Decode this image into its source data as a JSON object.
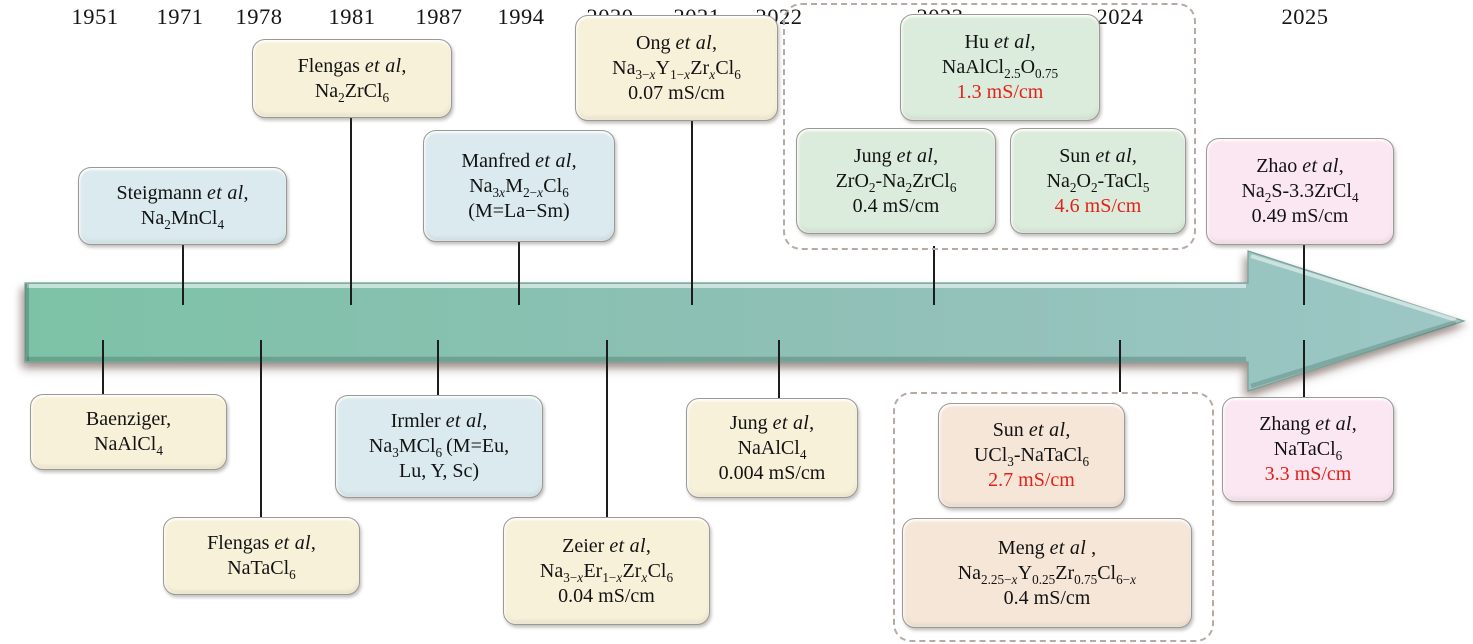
{
  "figure": {
    "description": "Timeline of sodium chloride-based solid electrolytes",
    "palette": {
      "arrow_left": "#7dc2a7",
      "arrow_right": "#9cc7c5",
      "box_cream": "#f8f1d9",
      "box_blue": "#daeaef",
      "box_green": "#dcecdc",
      "box_pink": "#fbe7f1",
      "box_tan": "#f6e6d8",
      "highlight_red": "#e32118",
      "dashed_frame": "#b6aaa4"
    }
  },
  "timeline": {
    "years": [
      "1951",
      "1971",
      "1978",
      "1981",
      "1987",
      "1994",
      "2020",
      "2021",
      "2022",
      "2023",
      "2024",
      "2025"
    ]
  },
  "boxes": [
    {
      "id": "flengas-1981",
      "color": "cream",
      "lines": [
        "Flengas <i>et al</i>,",
        "Na<sub>2</sub>ZrCl<sub>6</sub>"
      ]
    },
    {
      "id": "steigmann-1971",
      "color": "blue",
      "lines": [
        "Steigmann <i>et al</i>,",
        "Na<sub>2</sub>MnCl<sub>4</sub>"
      ]
    },
    {
      "id": "manfred-1994",
      "color": "blue",
      "lines": [
        "Manfred <i>et al</i>,",
        "Na<sub>3<i>x</i></sub>M<sub>2−<i>x</i></sub>Cl<sub>6</sub>",
        "(M=La−Sm)"
      ]
    },
    {
      "id": "ong-2021",
      "color": "cream",
      "lines": [
        "Ong <i>et al</i>,",
        "Na<sub>3−<i>x</i></sub>Y<sub>1−<i>x</i></sub>Zr<sub><i>x</i></sub>Cl<sub>6</sub>",
        "0.07 mS/cm"
      ]
    },
    {
      "id": "hu-2023",
      "color": "green",
      "lines": [
        "Hu <i>et al</i>,",
        "NaAlCl<sub>2.5</sub>O<sub>0.75</sub>",
        "<span class='red'>1.3 mS/cm</span>"
      ]
    },
    {
      "id": "jung-2023",
      "color": "green",
      "lines": [
        "Jung <i>et al</i>,",
        "ZrO<sub>2</sub>-Na<sub>2</sub>ZrCl<sub>6</sub>",
        "0.4 mS/cm"
      ]
    },
    {
      "id": "sun-2023",
      "color": "green",
      "lines": [
        "Sun <i>et al</i>,",
        "Na<sub>2</sub>O<sub>2</sub>-TaCl<sub>5</sub>",
        "<span class='red'>4.6 mS/cm</span>"
      ]
    },
    {
      "id": "zhao-2025",
      "color": "pink",
      "lines": [
        "Zhao <i>et al</i>,",
        "Na<sub>2</sub>S-3.3ZrCl<sub>4</sub>",
        "0.49 mS/cm"
      ]
    },
    {
      "id": "baenziger-1951",
      "color": "cream",
      "lines": [
        "Baenziger,",
        "NaAlCl<sub>4</sub>"
      ]
    },
    {
      "id": "flengas-1978",
      "color": "cream",
      "lines": [
        "Flengas <i>et al</i>,",
        "NaTaCl<sub>6</sub>"
      ]
    },
    {
      "id": "irmler-1987",
      "color": "blue",
      "lines": [
        "Irmler <i>et al</i>,",
        "Na<sub>3</sub>MCl<sub>6</sub> (M=Eu,",
        "Lu, Y, Sc)"
      ]
    },
    {
      "id": "zeier-2020",
      "color": "cream",
      "lines": [
        "Zeier <i>et al</i>,",
        "Na<sub>3−<i>x</i></sub>Er<sub>1−<i>x</i></sub>Zr<sub><i>x</i></sub>Cl<sub>6</sub>",
        "0.04 mS/cm"
      ]
    },
    {
      "id": "jung-2022",
      "color": "cream",
      "lines": [
        "Jung <i>et al</i>,",
        "NaAlCl<sub>4</sub>",
        "0.004 mS/cm"
      ]
    },
    {
      "id": "sun-2024",
      "color": "tan",
      "lines": [
        "Sun <i>et al</i>,",
        "UCl<sub>3</sub>-NaTaCl<sub>6</sub>",
        "<span class='red'>2.7 mS/cm</span>"
      ]
    },
    {
      "id": "meng-2024",
      "color": "tan",
      "lines": [
        "Meng <i>et al</i> ,",
        "Na<sub>2.25−<i>x</i></sub>Y<sub>0.25</sub>Zr<sub>0.75</sub>Cl<sub>6−<i>x</i></sub>",
        "0.4 mS/cm"
      ]
    },
    {
      "id": "zhang-2025",
      "color": "pink",
      "lines": [
        "Zhang <i>et al</i>,",
        "NaTaCl<sub>6</sub>",
        "<span class='red'>3.3 mS/cm</span>"
      ]
    }
  ]
}
